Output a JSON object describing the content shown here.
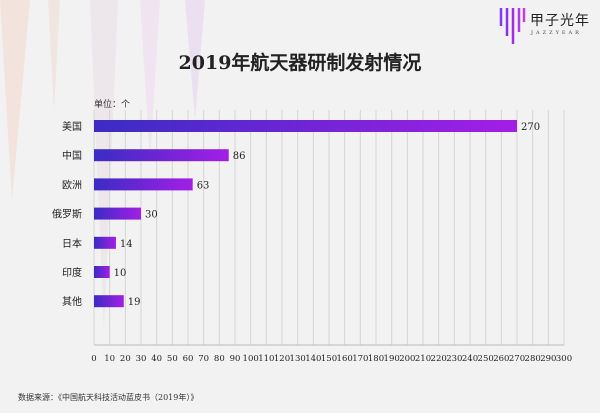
{
  "title": "2019年航天器研制发射情况",
  "unit_label": "单位：个",
  "source": "数据来源：《中国航天科技活动蓝皮书（2019年）》",
  "logo": {
    "name": "甲子光年",
    "sub": "JAZZYEAR"
  },
  "colors": {
    "bar_start": "#3a2cc4",
    "bar_end": "#a41ee6",
    "background": "#f2f2f2"
  },
  "chart_data": {
    "type": "bar",
    "orientation": "horizontal",
    "categories": [
      "美国",
      "中国",
      "欧洲",
      "俄罗斯",
      "日本",
      "印度",
      "其他"
    ],
    "values": [
      270,
      86,
      63,
      30,
      14,
      10,
      19
    ],
    "xlim": [
      0,
      300
    ],
    "xticks": [
      0,
      10,
      20,
      30,
      40,
      50,
      60,
      70,
      80,
      90,
      100,
      110,
      120,
      130,
      140,
      150,
      160,
      170,
      180,
      190,
      200,
      210,
      220,
      230,
      240,
      250,
      260,
      270,
      280,
      290,
      300
    ],
    "grid": true,
    "data_labels": true
  }
}
